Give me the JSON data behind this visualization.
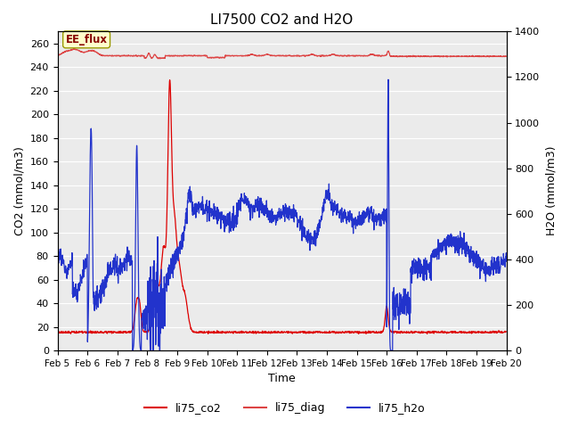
{
  "title": "LI7500 CO2 and H2O",
  "xlabel": "Time",
  "ylabel_left": "CO2 (mmol/m3)",
  "ylabel_right": "H2O (mmol/m3)",
  "ylim_left": [
    0,
    270
  ],
  "ylim_right": [
    0,
    1400
  ],
  "background_color": "#ffffff",
  "plot_bg_color": "#ebebeb",
  "legend_labels": [
    "li75_co2",
    "li75_diag",
    "li75_h2o"
  ],
  "co2_color": "#dd0000",
  "diag_color": "#dd4444",
  "h2o_color": "#2233cc",
  "grid_color": "#ffffff",
  "annotation_text": "EE_flux",
  "annotation_box_color": "#ffffcc",
  "annotation_box_edge": "#999900",
  "xtick_labels": [
    "Feb 5",
    "Feb 6",
    "Feb 7",
    "Feb 8",
    "Feb 9",
    "Feb 10",
    "Feb 11",
    "Feb 12",
    "Feb 13",
    "Feb 14",
    "Feb 15",
    "Feb 16",
    "Feb 17",
    "Feb 18",
    "Feb 19",
    "Feb 20"
  ],
  "yticks_left": [
    0,
    20,
    40,
    60,
    80,
    100,
    120,
    140,
    160,
    180,
    200,
    220,
    240,
    260
  ],
  "yticks_right": [
    0,
    200,
    400,
    600,
    800,
    1000,
    1200,
    1400
  ]
}
